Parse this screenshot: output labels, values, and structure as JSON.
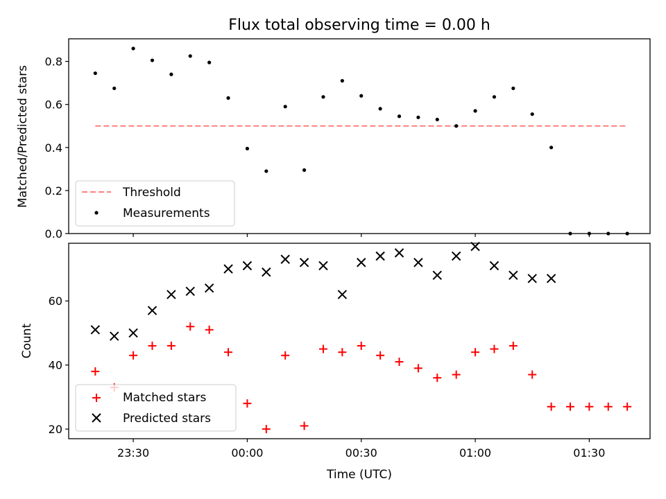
{
  "chart_data": [
    {
      "type": "scatter",
      "title": "Flux total observing time = 0.00 h",
      "xlabel": "",
      "ylabel": "Matched/Predicted stars",
      "ylim": [
        0,
        0.905
      ],
      "xlim": [
        "23:13",
        "01:46"
      ],
      "ytick_labels": [
        "0.0",
        "0.2",
        "0.4",
        "0.6",
        "0.8"
      ],
      "yticks": [
        0,
        0.2,
        0.4,
        0.6,
        0.8
      ],
      "xticks": [
        "23:30",
        "00:00",
        "00:30",
        "01:00",
        "01:30"
      ],
      "legend_position": "lower left",
      "series": [
        {
          "name": "Threshold",
          "style": "dashed-line",
          "color": "#ff7f7f",
          "x": [
            "23:20",
            "01:40"
          ],
          "y": [
            0.5,
            0.5
          ]
        },
        {
          "name": "Measurements",
          "style": "dot",
          "color": "#000000",
          "x": [
            "23:20",
            "23:25",
            "23:30",
            "23:35",
            "23:40",
            "23:45",
            "23:50",
            "23:55",
            "00:00",
            "00:05",
            "00:10",
            "00:15",
            "00:20",
            "00:25",
            "00:30",
            "00:35",
            "00:40",
            "00:45",
            "00:50",
            "00:55",
            "01:00",
            "01:05",
            "01:10",
            "01:15",
            "01:20",
            "01:25",
            "01:30",
            "01:35",
            "01:40"
          ],
          "y": [
            0.745,
            0.675,
            0.86,
            0.805,
            0.74,
            0.825,
            0.795,
            0.63,
            0.395,
            0.29,
            0.59,
            0.295,
            0.635,
            0.71,
            0.64,
            0.58,
            0.545,
            0.54,
            0.53,
            0.5,
            0.57,
            0.635,
            0.675,
            0.555,
            0.4,
            0,
            0,
            0,
            0
          ]
        }
      ]
    },
    {
      "type": "scatter",
      "title": "",
      "xlabel": "Time (UTC)",
      "ylabel": "Count",
      "ylim": [
        17,
        78
      ],
      "xlim": [
        "23:13",
        "01:46"
      ],
      "ytick_labels": [
        "20",
        "40",
        "60"
      ],
      "yticks": [
        20,
        40,
        60
      ],
      "xtick_labels": [
        "23:30",
        "00:00",
        "00:30",
        "01:00",
        "01:30"
      ],
      "xticks": [
        "23:30",
        "00:00",
        "00:30",
        "01:00",
        "01:30"
      ],
      "legend_position": "lower left",
      "series": [
        {
          "name": "Matched stars",
          "marker": "plus",
          "color": "#ff0000",
          "x": [
            "23:20",
            "23:25",
            "23:30",
            "23:35",
            "23:40",
            "23:45",
            "23:50",
            "23:55",
            "00:00",
            "00:05",
            "00:10",
            "00:15",
            "00:20",
            "00:25",
            "00:30",
            "00:35",
            "00:40",
            "00:45",
            "00:50",
            "00:55",
            "01:00",
            "01:05",
            "01:10",
            "01:15",
            "01:20",
            "01:25",
            "01:30",
            "01:35",
            "01:40"
          ],
          "y": [
            38,
            33,
            43,
            46,
            46,
            52,
            51,
            44,
            28,
            20,
            43,
            21,
            45,
            44,
            46,
            43,
            41,
            39,
            36,
            37,
            44,
            45,
            46,
            37,
            27,
            27,
            27,
            27,
            27
          ]
        },
        {
          "name": "Predicted stars",
          "marker": "x",
          "color": "#000000",
          "x": [
            "23:20",
            "23:25",
            "23:30",
            "23:35",
            "23:40",
            "23:45",
            "23:50",
            "23:55",
            "00:00",
            "00:05",
            "00:10",
            "00:15",
            "00:20",
            "00:25",
            "00:30",
            "00:35",
            "00:40",
            "00:45",
            "00:50",
            "00:55",
            "01:00",
            "01:05",
            "01:10",
            "01:15",
            "01:20"
          ],
          "y": [
            51,
            49,
            50,
            57,
            62,
            63,
            64,
            70,
            71,
            69,
            73,
            72,
            71,
            62,
            72,
            74,
            75,
            72,
            68,
            74,
            77,
            71,
            68,
            67,
            67
          ]
        }
      ]
    }
  ]
}
